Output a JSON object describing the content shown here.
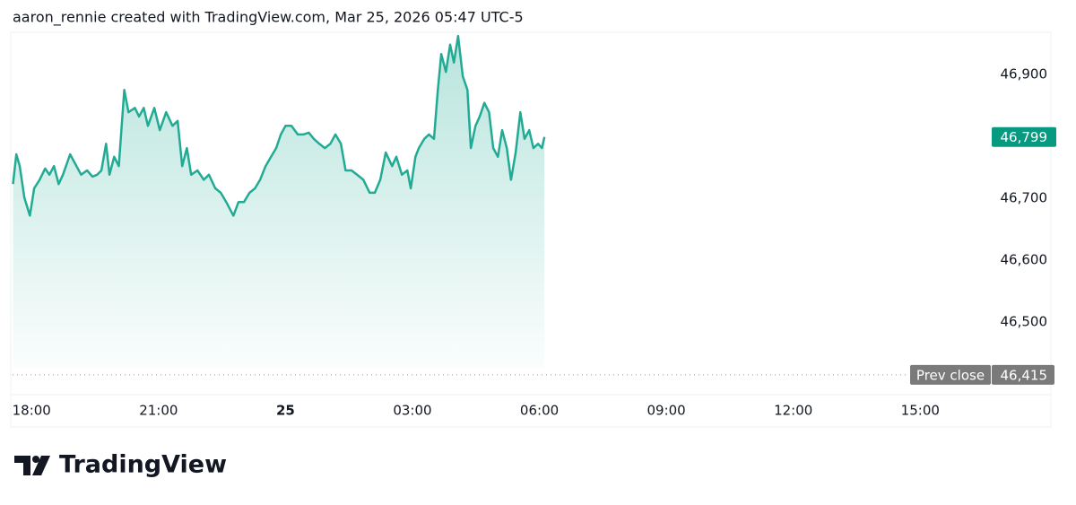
{
  "header": "aaron_rennie created with TradingView.com, Mar 25, 2026 05:47 UTC-5",
  "brand": "TradingView",
  "chart_data": {
    "type": "area",
    "color": "#22ab94",
    "x": [
      17.56,
      17.64,
      17.72,
      17.83,
      17.96,
      18.06,
      18.19,
      18.32,
      18.42,
      18.53,
      18.64,
      18.74,
      18.91,
      19.06,
      19.17,
      19.31,
      19.44,
      19.55,
      19.65,
      19.76,
      19.84,
      19.95,
      20.06,
      20.19,
      20.29,
      20.44,
      20.54,
      20.65,
      20.75,
      20.9,
      21.03,
      21.18,
      21.33,
      21.45,
      21.56,
      21.67,
      21.77,
      21.92,
      22.07,
      22.19,
      22.34,
      22.47,
      22.6,
      22.77,
      22.89,
      23.02,
      23.15,
      23.28,
      23.4,
      23.53,
      23.66,
      23.78,
      23.89,
      24.0,
      24.14,
      24.29,
      24.42,
      24.55,
      24.67,
      24.8,
      24.93,
      25.06,
      25.18,
      25.31,
      25.42,
      25.56,
      25.69,
      25.84,
      25.99,
      26.11,
      26.24,
      26.37,
      26.52,
      26.62,
      26.75,
      26.88,
      26.96,
      27.07,
      27.15,
      27.28,
      27.39,
      27.51,
      27.6,
      27.68,
      27.79,
      27.89,
      27.98,
      28.08,
      28.19,
      28.3,
      28.38,
      28.49,
      28.59,
      28.7,
      28.81,
      28.91,
      29.02,
      29.12,
      29.23,
      29.33,
      29.44,
      29.55,
      29.65,
      29.76,
      29.86,
      29.97,
      30.06,
      30.12
    ],
    "values": [
      46723,
      46771,
      46752,
      46701,
      46672,
      46716,
      46730,
      46748,
      46738,
      46752,
      46723,
      46738,
      46771,
      46752,
      46738,
      46745,
      46735,
      46738,
      46745,
      46788,
      46738,
      46767,
      46752,
      46875,
      46839,
      46846,
      46832,
      46846,
      46817,
      46846,
      46810,
      46839,
      46817,
      46825,
      46752,
      46781,
      46738,
      46745,
      46730,
      46738,
      46716,
      46709,
      46694,
      46672,
      46694,
      46694,
      46709,
      46716,
      46730,
      46752,
      46767,
      46781,
      46803,
      46817,
      46817,
      46803,
      46803,
      46806,
      46796,
      46788,
      46781,
      46788,
      46803,
      46788,
      46745,
      46745,
      46738,
      46730,
      46709,
      46709,
      46730,
      46774,
      46752,
      46767,
      46738,
      46745,
      46716,
      46767,
      46781,
      46796,
      46803,
      46796,
      46875,
      46933,
      46904,
      46948,
      46919,
      46962,
      46897,
      46875,
      46781,
      46817,
      46832,
      46854,
      46839,
      46781,
      46767,
      46810,
      46781,
      46730,
      46774,
      46839,
      46796,
      46810,
      46781,
      46788,
      46781,
      46799
    ],
    "last_label": "46,799",
    "prev_close": 46415,
    "prev_close_label": "46,415",
    "prev_close_text": "Prev close",
    "xlim": [
      17.55,
      40.35
    ],
    "xticks": [
      {
        "value": 18,
        "label": "18:00"
      },
      {
        "value": 21,
        "label": "21:00"
      },
      {
        "value": 24,
        "label": "25"
      },
      {
        "value": 27,
        "label": "03:00"
      },
      {
        "value": 30,
        "label": "06:00"
      },
      {
        "value": 33,
        "label": "09:00"
      },
      {
        "value": 36,
        "label": "12:00"
      },
      {
        "value": 39,
        "label": "15:00"
      }
    ],
    "ylim": [
      46383,
      46968
    ],
    "yticks": [
      {
        "value": 46500,
        "label": "46,500"
      },
      {
        "value": 46600,
        "label": "46,600"
      },
      {
        "value": 46700,
        "label": "46,700"
      },
      {
        "value": 46900,
        "label": "46,900"
      }
    ]
  }
}
